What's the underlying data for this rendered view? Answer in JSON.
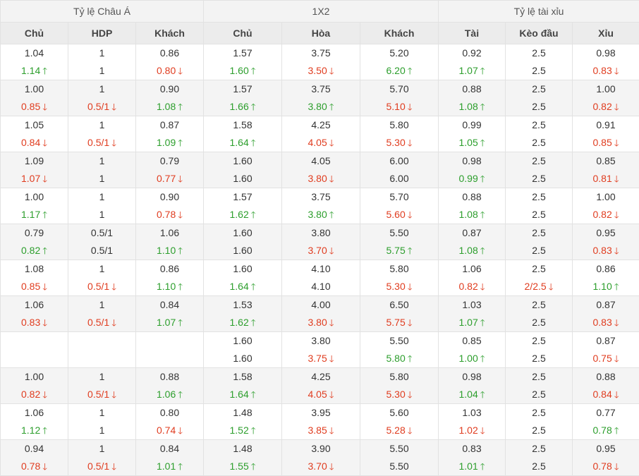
{
  "groups": [
    "Tỷ lệ Châu Á",
    "1X2",
    "Tỷ lệ tài xỉu"
  ],
  "columns": [
    "Chủ",
    "HDP",
    "Khách",
    "Chủ",
    "Hòa",
    "Khách",
    "Tài",
    "Kèo đầu",
    "Xỉu"
  ],
  "rows": [
    [
      [
        "1.04",
        "1.14",
        "up"
      ],
      [
        "1",
        "1",
        ""
      ],
      [
        "0.86",
        "0.80",
        "down"
      ],
      [
        "1.57",
        "1.60",
        "up"
      ],
      [
        "3.75",
        "3.50",
        "down"
      ],
      [
        "5.20",
        "6.20",
        "up"
      ],
      [
        "0.92",
        "1.07",
        "up"
      ],
      [
        "2.5",
        "2.5",
        ""
      ],
      [
        "0.98",
        "0.83",
        "down"
      ]
    ],
    [
      [
        "1.00",
        "0.85",
        "down"
      ],
      [
        "1",
        "0.5/1",
        "down"
      ],
      [
        "0.90",
        "1.08",
        "up"
      ],
      [
        "1.57",
        "1.66",
        "up"
      ],
      [
        "3.75",
        "3.80",
        "up"
      ],
      [
        "5.70",
        "5.10",
        "down"
      ],
      [
        "0.88",
        "1.08",
        "up"
      ],
      [
        "2.5",
        "2.5",
        ""
      ],
      [
        "1.00",
        "0.82",
        "down"
      ]
    ],
    [
      [
        "1.05",
        "0.84",
        "down"
      ],
      [
        "1",
        "0.5/1",
        "down"
      ],
      [
        "0.87",
        "1.09",
        "up"
      ],
      [
        "1.58",
        "1.64",
        "up"
      ],
      [
        "4.25",
        "4.05",
        "down"
      ],
      [
        "5.80",
        "5.30",
        "down"
      ],
      [
        "0.99",
        "1.05",
        "up"
      ],
      [
        "2.5",
        "2.5",
        ""
      ],
      [
        "0.91",
        "0.85",
        "down"
      ]
    ],
    [
      [
        "1.09",
        "1.07",
        "down"
      ],
      [
        "1",
        "1",
        ""
      ],
      [
        "0.79",
        "0.77",
        "down"
      ],
      [
        "1.60",
        "1.60",
        ""
      ],
      [
        "4.05",
        "3.80",
        "down"
      ],
      [
        "6.00",
        "6.00",
        ""
      ],
      [
        "0.98",
        "0.99",
        "up"
      ],
      [
        "2.5",
        "2.5",
        ""
      ],
      [
        "0.85",
        "0.81",
        "down"
      ]
    ],
    [
      [
        "1.00",
        "1.17",
        "up"
      ],
      [
        "1",
        "1",
        ""
      ],
      [
        "0.90",
        "0.78",
        "down"
      ],
      [
        "1.57",
        "1.62",
        "up"
      ],
      [
        "3.75",
        "3.80",
        "up"
      ],
      [
        "5.70",
        "5.60",
        "down"
      ],
      [
        "0.88",
        "1.08",
        "up"
      ],
      [
        "2.5",
        "2.5",
        ""
      ],
      [
        "1.00",
        "0.82",
        "down"
      ]
    ],
    [
      [
        "0.79",
        "0.82",
        "up"
      ],
      [
        "0.5/1",
        "0.5/1",
        ""
      ],
      [
        "1.06",
        "1.10",
        "up"
      ],
      [
        "1.60",
        "1.60",
        ""
      ],
      [
        "3.80",
        "3.70",
        "down"
      ],
      [
        "5.50",
        "5.75",
        "up"
      ],
      [
        "0.87",
        "1.08",
        "up"
      ],
      [
        "2.5",
        "2.5",
        ""
      ],
      [
        "0.95",
        "0.83",
        "down"
      ]
    ],
    [
      [
        "1.08",
        "0.85",
        "down"
      ],
      [
        "1",
        "0.5/1",
        "down"
      ],
      [
        "0.86",
        "1.10",
        "up"
      ],
      [
        "1.60",
        "1.64",
        "up"
      ],
      [
        "4.10",
        "4.10",
        ""
      ],
      [
        "5.80",
        "5.30",
        "down"
      ],
      [
        "1.06",
        "0.82",
        "down"
      ],
      [
        "2.5",
        "2/2.5",
        "down"
      ],
      [
        "0.86",
        "1.10",
        "up"
      ]
    ],
    [
      [
        "1.06",
        "0.83",
        "down"
      ],
      [
        "1",
        "0.5/1",
        "down"
      ],
      [
        "0.84",
        "1.07",
        "up"
      ],
      [
        "1.53",
        "1.62",
        "up"
      ],
      [
        "4.00",
        "3.80",
        "down"
      ],
      [
        "6.50",
        "5.75",
        "down"
      ],
      [
        "1.03",
        "1.07",
        "up"
      ],
      [
        "2.5",
        "2.5",
        ""
      ],
      [
        "0.87",
        "0.83",
        "down"
      ]
    ],
    [
      [
        "",
        "",
        ""
      ],
      [
        "",
        "",
        ""
      ],
      [
        "",
        "",
        ""
      ],
      [
        "1.60",
        "1.60",
        ""
      ],
      [
        "3.80",
        "3.75",
        "down"
      ],
      [
        "5.50",
        "5.80",
        "up"
      ],
      [
        "0.85",
        "1.00",
        "up"
      ],
      [
        "2.5",
        "2.5",
        ""
      ],
      [
        "0.87",
        "0.75",
        "down"
      ]
    ],
    [
      [
        "1.00",
        "0.82",
        "down"
      ],
      [
        "1",
        "0.5/1",
        "down"
      ],
      [
        "0.88",
        "1.06",
        "up"
      ],
      [
        "1.58",
        "1.64",
        "up"
      ],
      [
        "4.25",
        "4.05",
        "down"
      ],
      [
        "5.80",
        "5.30",
        "down"
      ],
      [
        "0.98",
        "1.04",
        "up"
      ],
      [
        "2.5",
        "2.5",
        ""
      ],
      [
        "0.88",
        "0.84",
        "down"
      ]
    ],
    [
      [
        "1.06",
        "1.12",
        "up"
      ],
      [
        "1",
        "1",
        ""
      ],
      [
        "0.80",
        "0.74",
        "down"
      ],
      [
        "1.48",
        "1.52",
        "up"
      ],
      [
        "3.95",
        "3.85",
        "down"
      ],
      [
        "5.60",
        "5.28",
        "down"
      ],
      [
        "1.03",
        "1.02",
        "down"
      ],
      [
        "2.5",
        "2.5",
        ""
      ],
      [
        "0.77",
        "0.78",
        "up"
      ]
    ],
    [
      [
        "0.94",
        "0.78",
        "down"
      ],
      [
        "1",
        "0.5/1",
        "down"
      ],
      [
        "0.84",
        "1.01",
        "up"
      ],
      [
        "1.48",
        "1.55",
        "up"
      ],
      [
        "3.90",
        "3.70",
        "down"
      ],
      [
        "5.50",
        "5.50",
        ""
      ],
      [
        "0.83",
        "1.01",
        "up"
      ],
      [
        "2.5",
        "2.5",
        ""
      ],
      [
        "0.95",
        "0.78",
        "down"
      ]
    ]
  ],
  "arrow_glyphs": {
    "up": "🡑",
    "down": "🡓"
  },
  "colors": {
    "up": "#2c9e2c",
    "down": "#e03c1f",
    "header_bg": "#ececec",
    "row_alt": "#f4f4f4",
    "border": "#e2e2e2"
  }
}
